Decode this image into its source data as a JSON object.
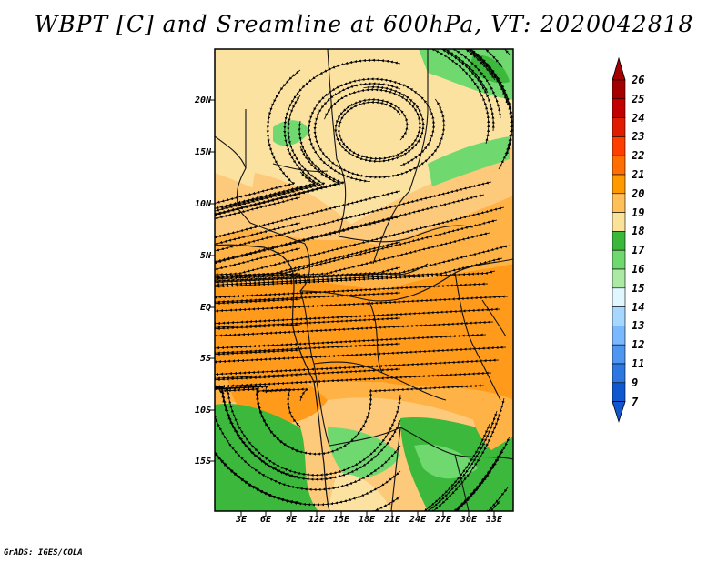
{
  "title": "WBPT [C] and Sreamline at 600hPa, VT: 2020042818",
  "credit": "GrADS: IGES/COLA",
  "lat_labels": [
    "20N",
    "15N",
    "10N",
    "5N",
    "EQ",
    "5S",
    "10S",
    "15S"
  ],
  "lon_labels": [
    "3E",
    "6E",
    "9E",
    "12E",
    "15E",
    "18E",
    "21E",
    "24E",
    "27E",
    "30E",
    "33E"
  ],
  "colorbar": {
    "labels": [
      "26",
      "25",
      "24",
      "23",
      "22",
      "21",
      "20",
      "19",
      "18",
      "17",
      "16",
      "15",
      "14",
      "13",
      "12",
      "11",
      "9",
      "7"
    ],
    "colors": [
      "#a50000",
      "#c30000",
      "#e11d00",
      "#ff3f00",
      "#ff6e00",
      "#ff9900",
      "#ffc05a",
      "#fbe29a",
      "#3ab83a",
      "#6fd96f",
      "#abe9a5",
      "#e0f7ff",
      "#a5d7ff",
      "#7ab9ff",
      "#4f96f0",
      "#2c78e0",
      "#1058d0"
    ],
    "top_arrow_color": "#a50000",
    "bottom_arrow_color": "#1058d0"
  },
  "colors": {
    "orange_dark": "#ff9a1a",
    "orange": "#ffb347",
    "light_orange": "#fdc97a",
    "pale_yellow": "#fbe2a0",
    "green": "#3cb83c",
    "light_green": "#6fd96f",
    "streamline": "#000000"
  }
}
